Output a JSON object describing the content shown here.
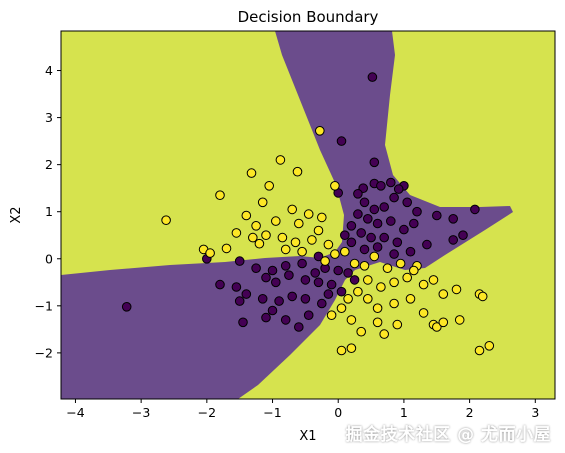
{
  "chart_data": {
    "type": "scatter",
    "title": "Decision Boundary",
    "xlabel": "X1",
    "ylabel": "X2",
    "xlim": [
      -4.22,
      3.3
    ],
    "ylim": [
      -2.98,
      4.84
    ],
    "xticks": [
      "−4",
      "−3",
      "−2",
      "−1",
      "0",
      "1",
      "2",
      "3"
    ],
    "xtick_values": [
      -4,
      -3,
      -2,
      -1,
      0,
      1,
      2,
      3
    ],
    "yticks": [
      "−2",
      "−1",
      "0",
      "1",
      "2",
      "3",
      "4"
    ],
    "ytick_values": [
      -2,
      -1,
      0,
      1,
      2,
      3,
      4
    ],
    "grid": false,
    "regions": {
      "class_1_color": "#d6e34e",
      "class_0_color": "#6b4c8c",
      "description": "filled decision regions"
    },
    "series": [
      {
        "class": 0,
        "color": "#440154",
        "points": [
          [
            -3.22,
            -1.02
          ],
          [
            0.52,
            3.86
          ],
          [
            0.05,
            2.5
          ],
          [
            0.55,
            2.05
          ],
          [
            0.55,
            1.6
          ],
          [
            0.8,
            1.62
          ],
          [
            1.0,
            1.55
          ],
          [
            0.38,
            1.5
          ],
          [
            0.65,
            1.55
          ],
          [
            0.92,
            1.48
          ],
          [
            0.0,
            1.4
          ],
          [
            0.3,
            1.38
          ],
          [
            0.4,
            1.2
          ],
          [
            0.55,
            1.05
          ],
          [
            0.7,
            1.1
          ],
          [
            0.85,
            1.3
          ],
          [
            1.05,
            1.2
          ],
          [
            1.2,
            1.0
          ],
          [
            1.5,
            0.92
          ],
          [
            1.75,
            0.85
          ],
          [
            2.08,
            1.05
          ],
          [
            1.9,
            0.5
          ],
          [
            1.75,
            0.4
          ],
          [
            0.3,
            0.95
          ],
          [
            0.45,
            0.85
          ],
          [
            0.6,
            0.75
          ],
          [
            0.8,
            0.8
          ],
          [
            1.0,
            0.62
          ],
          [
            1.15,
            0.75
          ],
          [
            0.2,
            0.7
          ],
          [
            0.35,
            0.55
          ],
          [
            0.5,
            0.45
          ],
          [
            0.7,
            0.45
          ],
          [
            0.9,
            0.35
          ],
          [
            1.1,
            0.15
          ],
          [
            1.35,
            0.3
          ],
          [
            0.1,
            0.5
          ],
          [
            0.2,
            0.35
          ],
          [
            0.4,
            0.2
          ],
          [
            0.6,
            0.25
          ],
          [
            0.85,
            0.1
          ],
          [
            -2.0,
            0.0
          ],
          [
            -1.5,
            -0.05
          ],
          [
            -1.25,
            -0.2
          ],
          [
            -1.0,
            -0.25
          ],
          [
            -0.8,
            -0.15
          ],
          [
            -0.55,
            -0.1
          ],
          [
            -0.3,
            0.05
          ],
          [
            -0.2,
            -0.2
          ],
          [
            0.0,
            -0.25
          ],
          [
            0.15,
            -0.3
          ],
          [
            -1.1,
            -0.4
          ],
          [
            -0.95,
            -0.5
          ],
          [
            -0.75,
            -0.35
          ],
          [
            -0.5,
            -0.45
          ],
          [
            -0.3,
            -0.5
          ],
          [
            -0.1,
            -0.55
          ],
          [
            0.05,
            -0.7
          ],
          [
            -1.8,
            -0.55
          ],
          [
            -1.55,
            -0.6
          ],
          [
            -1.4,
            -0.75
          ],
          [
            -1.5,
            -0.9
          ],
          [
            -1.15,
            -0.85
          ],
          [
            -0.9,
            -0.9
          ],
          [
            -0.7,
            -0.8
          ],
          [
            -0.5,
            -0.85
          ],
          [
            -0.25,
            -0.95
          ],
          [
            -1.0,
            -1.1
          ],
          [
            -1.1,
            -1.25
          ],
          [
            -0.45,
            -1.2
          ],
          [
            -0.8,
            -1.3
          ],
          [
            -1.45,
            -1.35
          ],
          [
            -0.6,
            -1.45
          ],
          [
            -0.35,
            -0.3
          ],
          [
            -0.15,
            -0.75
          ],
          [
            0.25,
            -0.45
          ]
        ]
      },
      {
        "class": 1,
        "color": "#fde725",
        "points": [
          [
            -2.62,
            0.82
          ],
          [
            -0.28,
            2.72
          ],
          [
            -1.32,
            1.82
          ],
          [
            -0.88,
            2.1
          ],
          [
            -0.62,
            1.85
          ],
          [
            -1.05,
            1.55
          ],
          [
            -0.05,
            1.55
          ],
          [
            -1.8,
            1.35
          ],
          [
            -1.15,
            1.2
          ],
          [
            -0.7,
            1.05
          ],
          [
            -0.45,
            0.95
          ],
          [
            -0.25,
            0.88
          ],
          [
            -1.4,
            0.92
          ],
          [
            -1.25,
            0.7
          ],
          [
            -0.95,
            0.8
          ],
          [
            -0.6,
            0.75
          ],
          [
            -0.3,
            0.6
          ],
          [
            -1.55,
            0.55
          ],
          [
            -1.3,
            0.45
          ],
          [
            -1.1,
            0.5
          ],
          [
            -0.85,
            0.45
          ],
          [
            -0.65,
            0.35
          ],
          [
            -0.4,
            0.4
          ],
          [
            -0.15,
            0.3
          ],
          [
            -1.2,
            0.32
          ],
          [
            -0.8,
            0.2
          ],
          [
            -0.55,
            0.15
          ],
          [
            -2.05,
            0.2
          ],
          [
            -1.95,
            0.12
          ],
          [
            -1.7,
            0.22
          ],
          [
            -0.2,
            -0.05
          ],
          [
            -0.05,
            0.1
          ],
          [
            0.1,
            0.15
          ],
          [
            0.25,
            -0.1
          ],
          [
            0.4,
            -0.15
          ],
          [
            0.55,
            0.05
          ],
          [
            0.75,
            -0.2
          ],
          [
            0.95,
            -0.1
          ],
          [
            1.2,
            -0.15
          ],
          [
            1.05,
            -0.4
          ],
          [
            0.85,
            -0.5
          ],
          [
            0.65,
            -0.6
          ],
          [
            0.45,
            -0.45
          ],
          [
            0.3,
            -0.7
          ],
          [
            0.15,
            -0.85
          ],
          [
            0.05,
            -1.05
          ],
          [
            0.45,
            -0.85
          ],
          [
            0.6,
            -1.05
          ],
          [
            0.85,
            -0.95
          ],
          [
            1.1,
            -0.85
          ],
          [
            1.3,
            -0.55
          ],
          [
            1.45,
            -0.45
          ],
          [
            1.6,
            -0.75
          ],
          [
            1.8,
            -0.65
          ],
          [
            0.2,
            -1.3
          ],
          [
            0.6,
            -1.35
          ],
          [
            0.9,
            -1.4
          ],
          [
            1.3,
            -1.15
          ],
          [
            1.45,
            -1.4
          ],
          [
            1.5,
            -1.45
          ],
          [
            1.6,
            -1.35
          ],
          [
            1.85,
            -1.3
          ],
          [
            0.7,
            -1.6
          ],
          [
            0.05,
            -1.95
          ],
          [
            0.2,
            -1.9
          ],
          [
            2.15,
            -0.75
          ],
          [
            2.2,
            -0.8
          ],
          [
            2.15,
            -1.95
          ],
          [
            2.3,
            -1.85
          ],
          [
            -0.1,
            -1.2
          ],
          [
            0.35,
            -1.55
          ],
          [
            1.15,
            -0.25
          ]
        ]
      }
    ]
  },
  "watermark": "掘金技术社区 @ 尤而小屋"
}
